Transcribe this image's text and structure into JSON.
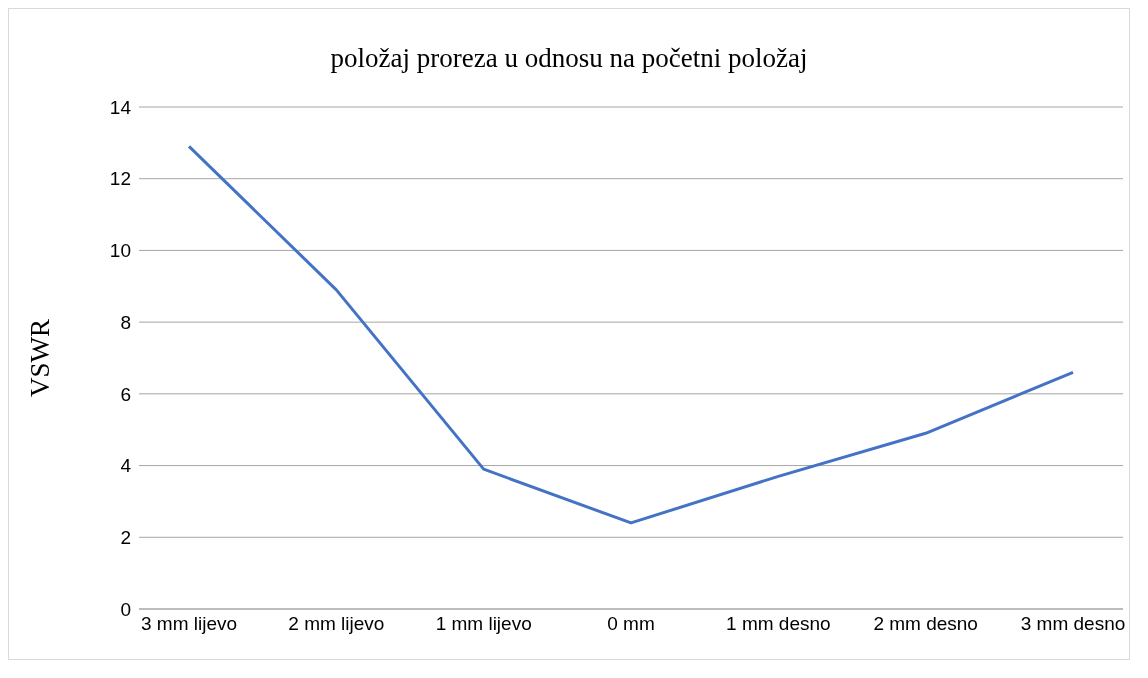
{
  "chart_data": {
    "type": "line",
    "title": "položaj proreza u odnosu na početni položaj",
    "ylabel": "VSWR",
    "categories": [
      "3 mm lijevo",
      "2 mm lijevo",
      "1 mm lijevo",
      "0 mm",
      "1 mm desno",
      "2 mm desno",
      "3 mm desno"
    ],
    "series": [
      {
        "color": "#4472c4",
        "values": [
          12.9,
          8.9,
          3.9,
          2.4,
          3.7,
          4.9,
          6.6
        ]
      }
    ],
    "ylim": [
      0,
      14
    ],
    "yticks": [
      0,
      2,
      4,
      6,
      8,
      10,
      12,
      14
    ],
    "grid": "y",
    "legend": false,
    "marker": "none",
    "line_style": "solid"
  }
}
